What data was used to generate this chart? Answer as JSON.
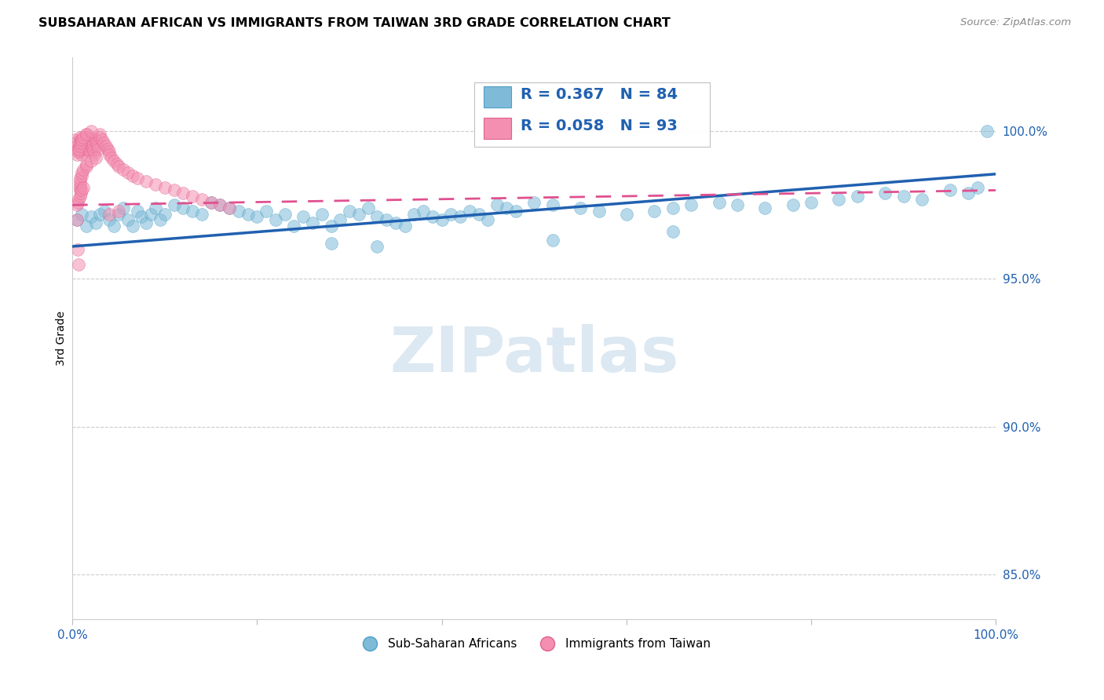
{
  "title": "SUBSAHARAN AFRICAN VS IMMIGRANTS FROM TAIWAN 3RD GRADE CORRELATION CHART",
  "source": "Source: ZipAtlas.com",
  "ylabel": "3rd Grade",
  "legend_blue_R": "R = 0.367",
  "legend_blue_N": "N = 84",
  "legend_pink_R": "R = 0.058",
  "legend_pink_N": "N = 93",
  "blue_scatter_color": "#7fbbd8",
  "blue_edge_color": "#4f9fc8",
  "pink_scatter_color": "#f48fb1",
  "pink_edge_color": "#e06090",
  "blue_line_color": "#2060b0",
  "pink_line_color": "#e05090",
  "ytick_values": [
    0.85,
    0.9,
    0.95,
    1.0
  ],
  "ytick_labels": [
    "85.0%",
    "90.0%",
    "95.0%",
    "100.0%"
  ],
  "xlim": [
    0.0,
    1.0
  ],
  "ylim": [
    0.835,
    1.025
  ],
  "watermark_text": "ZIPatlas",
  "blue_line_x": [
    0.0,
    1.0
  ],
  "blue_line_y": [
    0.961,
    0.9855
  ],
  "pink_line_x": [
    0.0,
    1.0
  ],
  "pink_line_y": [
    0.975,
    0.98
  ],
  "blue_x": [
    0.005,
    0.01,
    0.015,
    0.02,
    0.025,
    0.03,
    0.035,
    0.04,
    0.045,
    0.05,
    0.055,
    0.06,
    0.065,
    0.07,
    0.075,
    0.08,
    0.085,
    0.09,
    0.095,
    0.1,
    0.11,
    0.12,
    0.13,
    0.14,
    0.15,
    0.16,
    0.17,
    0.18,
    0.19,
    0.2,
    0.21,
    0.22,
    0.23,
    0.24,
    0.25,
    0.26,
    0.27,
    0.28,
    0.29,
    0.3,
    0.31,
    0.32,
    0.33,
    0.34,
    0.35,
    0.36,
    0.37,
    0.38,
    0.39,
    0.4,
    0.41,
    0.42,
    0.43,
    0.44,
    0.45,
    0.46,
    0.47,
    0.48,
    0.5,
    0.52,
    0.55,
    0.57,
    0.6,
    0.63,
    0.65,
    0.67,
    0.7,
    0.72,
    0.75,
    0.78,
    0.8,
    0.83,
    0.85,
    0.88,
    0.9,
    0.92,
    0.95,
    0.97,
    0.98,
    0.99,
    0.28,
    0.33,
    0.52,
    0.65
  ],
  "blue_y": [
    0.97,
    0.972,
    0.968,
    0.971,
    0.969,
    0.972,
    0.973,
    0.97,
    0.968,
    0.972,
    0.974,
    0.97,
    0.968,
    0.973,
    0.971,
    0.969,
    0.972,
    0.974,
    0.97,
    0.972,
    0.975,
    0.974,
    0.973,
    0.972,
    0.976,
    0.975,
    0.974,
    0.973,
    0.972,
    0.971,
    0.973,
    0.97,
    0.972,
    0.968,
    0.971,
    0.969,
    0.972,
    0.968,
    0.97,
    0.973,
    0.972,
    0.974,
    0.971,
    0.97,
    0.969,
    0.968,
    0.972,
    0.973,
    0.971,
    0.97,
    0.972,
    0.971,
    0.973,
    0.972,
    0.97,
    0.975,
    0.974,
    0.973,
    0.976,
    0.975,
    0.974,
    0.973,
    0.972,
    0.973,
    0.974,
    0.975,
    0.976,
    0.975,
    0.974,
    0.975,
    0.976,
    0.977,
    0.978,
    0.979,
    0.978,
    0.977,
    0.98,
    0.979,
    0.981,
    1.0,
    0.962,
    0.961,
    0.963,
    0.966
  ],
  "pink_x": [
    0.003,
    0.004,
    0.005,
    0.006,
    0.007,
    0.008,
    0.009,
    0.01,
    0.01,
    0.01,
    0.01,
    0.01,
    0.011,
    0.012,
    0.013,
    0.014,
    0.015,
    0.015,
    0.015,
    0.016,
    0.017,
    0.018,
    0.019,
    0.02,
    0.02,
    0.02,
    0.021,
    0.022,
    0.023,
    0.024,
    0.025,
    0.026,
    0.027,
    0.028,
    0.03,
    0.03,
    0.032,
    0.034,
    0.036,
    0.038,
    0.04,
    0.04,
    0.042,
    0.045,
    0.048,
    0.05,
    0.055,
    0.06,
    0.065,
    0.07,
    0.08,
    0.09,
    0.1,
    0.11,
    0.12,
    0.13,
    0.14,
    0.15,
    0.16,
    0.17,
    0.008,
    0.008,
    0.008,
    0.008,
    0.008,
    0.01,
    0.01,
    0.012,
    0.015,
    0.015,
    0.02,
    0.025,
    0.005,
    0.006,
    0.007,
    0.008,
    0.009,
    0.01,
    0.012,
    0.015,
    0.02,
    0.005,
    0.006,
    0.007,
    0.008,
    0.009,
    0.01,
    0.012,
    0.04,
    0.05,
    0.005,
    0.006,
    0.007
  ],
  "pink_y": [
    0.997,
    0.996,
    0.995,
    0.994,
    0.993,
    0.998,
    0.997,
    0.996,
    0.995,
    0.994,
    0.993,
    0.992,
    0.997,
    0.996,
    0.995,
    0.994,
    0.999,
    0.998,
    0.997,
    0.996,
    0.995,
    0.994,
    0.993,
    0.998,
    0.997,
    0.996,
    0.995,
    0.994,
    0.993,
    0.992,
    0.997,
    0.996,
    0.995,
    0.994,
    0.999,
    0.998,
    0.997,
    0.996,
    0.995,
    0.994,
    0.993,
    0.992,
    0.991,
    0.99,
    0.989,
    0.988,
    0.987,
    0.986,
    0.985,
    0.984,
    0.983,
    0.982,
    0.981,
    0.98,
    0.979,
    0.978,
    0.977,
    0.976,
    0.975,
    0.974,
    0.98,
    0.981,
    0.982,
    0.983,
    0.984,
    0.985,
    0.986,
    0.987,
    0.988,
    0.989,
    0.99,
    0.991,
    0.992,
    0.993,
    0.994,
    0.995,
    0.996,
    0.997,
    0.998,
    0.999,
    1.0,
    0.975,
    0.976,
    0.977,
    0.978,
    0.979,
    0.98,
    0.981,
    0.972,
    0.973,
    0.97,
    0.96,
    0.955
  ]
}
